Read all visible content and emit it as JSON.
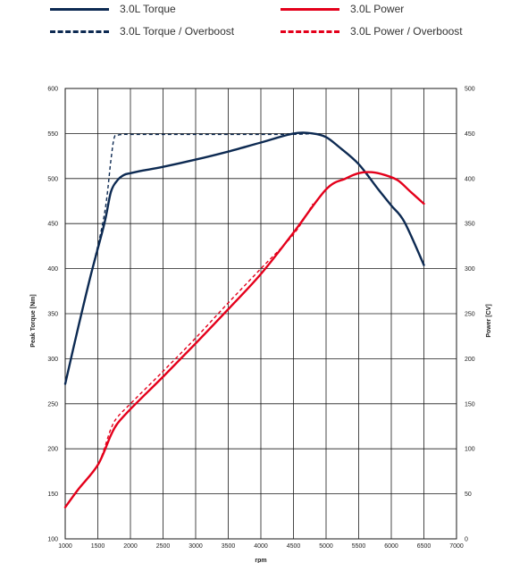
{
  "chart_data": {
    "type": "line",
    "title": "",
    "xlabel": "rpm",
    "ylabel": "Peak Torque [Nm]",
    "y2label": "Power [CV]",
    "xlim": [
      1000,
      7000
    ],
    "ylim": [
      100,
      600
    ],
    "y2lim": [
      0,
      500
    ],
    "x_ticks": [
      1000,
      1500,
      2000,
      2500,
      3000,
      3500,
      4000,
      4500,
      5000,
      5500,
      6000,
      6500,
      7000
    ],
    "y_ticks": [
      100,
      150,
      200,
      250,
      300,
      350,
      400,
      450,
      500,
      550,
      600
    ],
    "y2_ticks": [
      0,
      50,
      100,
      150,
      200,
      250,
      300,
      350,
      400,
      450,
      500
    ],
    "grid": true,
    "legend_position": "top",
    "series": [
      {
        "name": "3.0L Torque",
        "color": "#0d2a52",
        "dash": "solid",
        "axis": "left",
        "x": [
          1000,
          1200,
          1400,
          1600,
          1700,
          1800,
          1900,
          2000,
          2200,
          2500,
          3000,
          3500,
          4000,
          4500,
          4800,
          5000,
          5200,
          5500,
          5800,
          6000,
          6200,
          6500
        ],
        "y": [
          272,
          335,
          395,
          450,
          485,
          498,
          504,
          506,
          509,
          513,
          521,
          530,
          540,
          550,
          550,
          546,
          535,
          516,
          488,
          470,
          452,
          404
        ]
      },
      {
        "name": "3.0L Torque / Overboost",
        "color": "#0d2a52",
        "dash": "dashed",
        "axis": "left",
        "x": [
          1000,
          1200,
          1400,
          1600,
          1700,
          1750,
          1800,
          1900,
          2000,
          2500,
          3000,
          3500,
          4000,
          4500,
          4800
        ],
        "y": [
          272,
          335,
          395,
          460,
          520,
          545,
          548,
          549,
          549,
          549,
          549,
          549,
          549,
          549,
          550
        ]
      },
      {
        "name": "3.0L Power",
        "color": "#e4001b",
        "dash": "solid",
        "axis": "right",
        "x": [
          1000,
          1200,
          1500,
          1700,
          1800,
          2000,
          2500,
          3000,
          3500,
          4000,
          4500,
          5000,
          5300,
          5500,
          5700,
          5900,
          6100,
          6300,
          6500
        ],
        "y": [
          35,
          55,
          82,
          115,
          128,
          144,
          180,
          217,
          255,
          294,
          340,
          388,
          400,
          406,
          407,
          404,
          398,
          385,
          372
        ]
      },
      {
        "name": "3.0L Power / Overboost",
        "color": "#e4001b",
        "dash": "dashed",
        "axis": "right",
        "x": [
          1000,
          1200,
          1500,
          1700,
          1800,
          2000,
          2500,
          3000,
          3500,
          4000,
          4500,
          4800
        ],
        "y": [
          35,
          55,
          82,
          122,
          135,
          150,
          186,
          223,
          262,
          300,
          338,
          372
        ]
      }
    ]
  }
}
